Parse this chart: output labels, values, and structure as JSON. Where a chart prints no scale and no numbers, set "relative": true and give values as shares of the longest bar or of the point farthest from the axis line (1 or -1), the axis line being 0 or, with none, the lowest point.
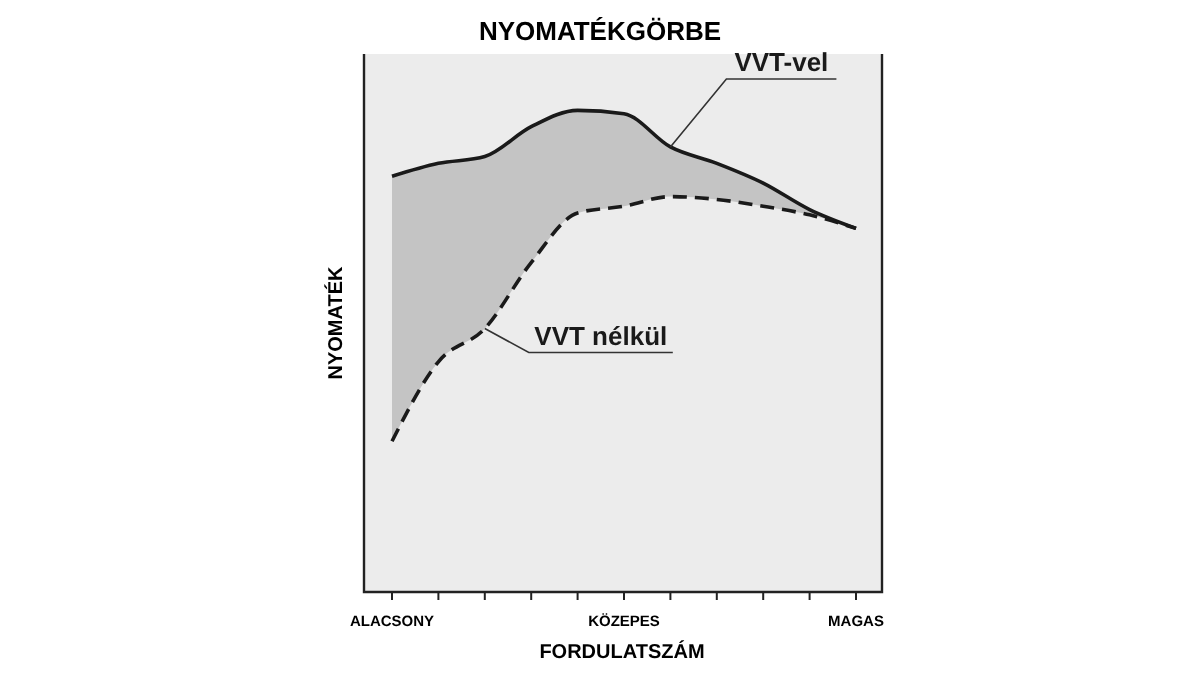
{
  "chart_data": {
    "type": "line",
    "title": "NYOMATÉKGÖRBE",
    "xlabel": "FORDULATSZÁM",
    "ylabel": "NYOMATÉK",
    "relative": true,
    "legend": false,
    "categories": [
      "ALACSONY",
      null,
      null,
      null,
      null,
      "KÖZEPES",
      null,
      null,
      null,
      null,
      "MAGAS"
    ],
    "series": [
      {
        "name": "VVT-vel",
        "color": "#1a1a1a",
        "line_style": "solid",
        "values": [
          0.863,
          0.89,
          0.904,
          0.966,
          1,
          0.993,
          0.924,
          0.89,
          0.849,
          0.794,
          0.755
        ],
        "lower": [
          0.313,
          0.478,
          0.547,
          0.684,
          0.787,
          0.801,
          0.821,
          0.815,
          0.801,
          0.783,
          0.755
        ],
        "upper": [
          0.863,
          0.89,
          0.904,
          0.966,
          1,
          0.993,
          0.924,
          0.89,
          0.849,
          0.794,
          0.755
        ]
      },
      {
        "name": "VVT nélkül",
        "color": "#1a1a1a",
        "line_style": "dashed",
        "values": [
          0.313,
          0.478,
          0.547,
          0.684,
          0.787,
          0.801,
          0.821,
          0.815,
          0.801,
          0.783,
          0.755
        ]
      }
    ]
  }
}
